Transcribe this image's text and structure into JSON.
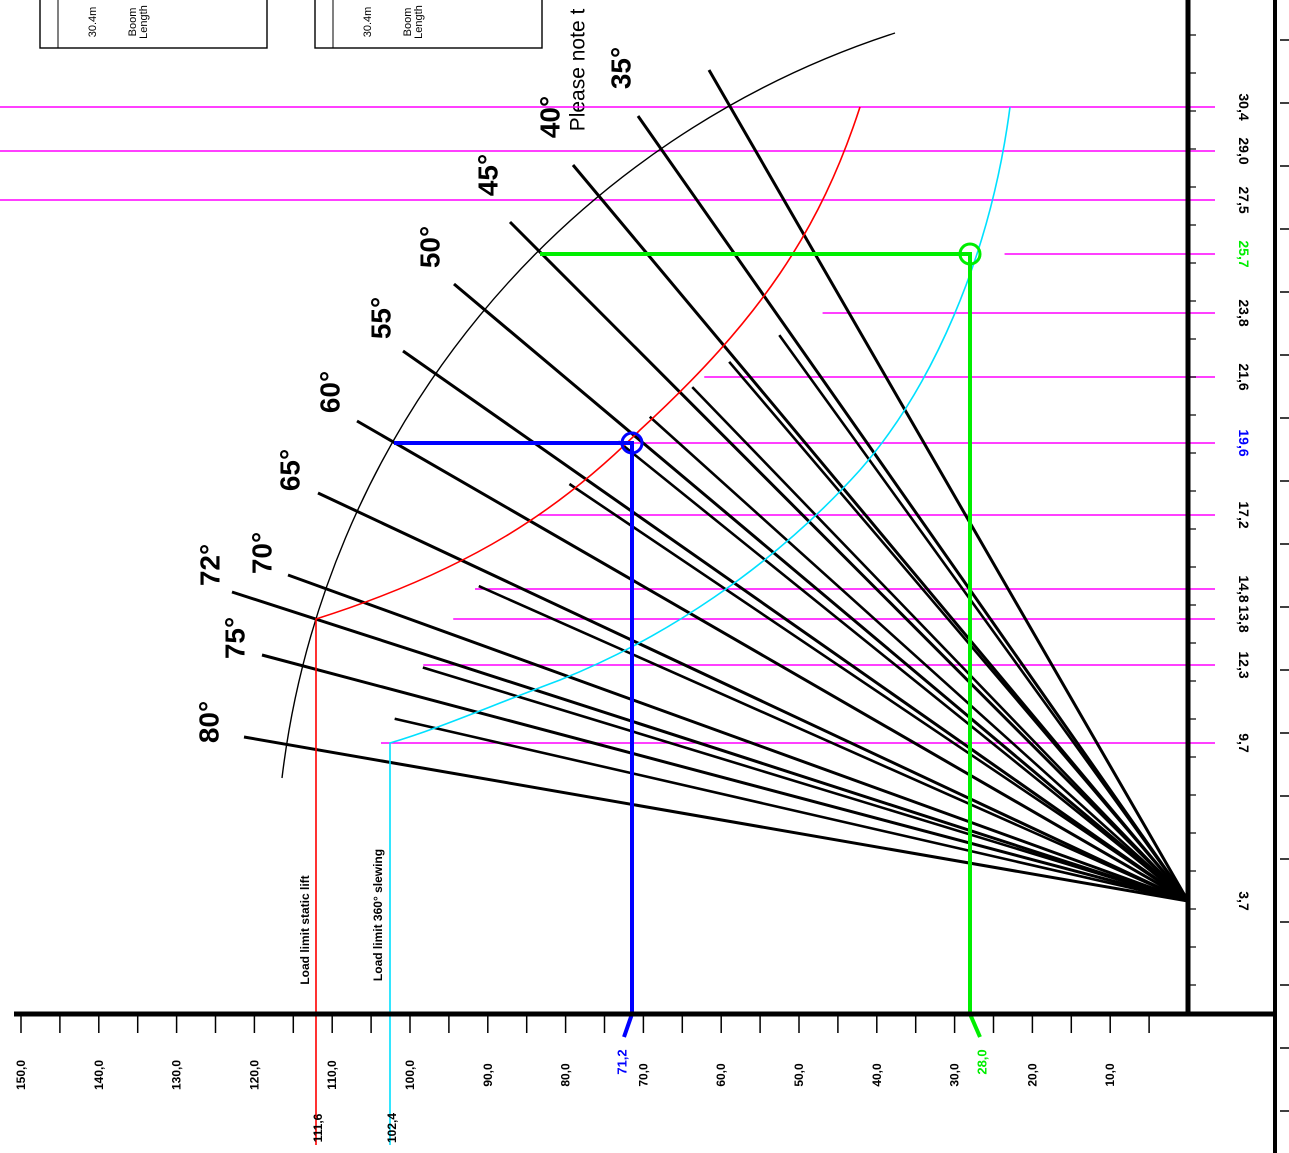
{
  "chart_data": {
    "type": "load_chart",
    "title": "",
    "horizontal_axis": {
      "ticks": [
        "10,0",
        "20,0",
        "30,0",
        "40,0",
        "50,0",
        "60,0",
        "70,0",
        "80,0",
        "90,0",
        "100,0",
        "110,0",
        "120,0",
        "130,0",
        "140,0",
        "150,0"
      ]
    },
    "vertical_axis": {
      "ticks": [
        "3,7",
        "9,7",
        "12,3",
        "13,8",
        "14,8",
        "17,2",
        "19,6",
        "21,6",
        "23,8",
        "25,7",
        "27,5",
        "29,0",
        "30,4"
      ]
    },
    "boom_angles": [
      "80°",
      "75°",
      "72°",
      "70°",
      "65°",
      "60°",
      "55°",
      "50°",
      "45°",
      "40°",
      "35°"
    ],
    "header_boxes": [
      {
        "length": "30.4m",
        "label_1": "Boom",
        "label_2": "Length"
      },
      {
        "length": "30.4m",
        "label_1": "Boom",
        "label_2": "Length"
      }
    ],
    "note_text": "Please note t",
    "load_limits": [
      {
        "name": "Load limit static lift",
        "end_value": "111,6",
        "color": "#ff0000"
      },
      {
        "name": "Load limit 360° slewing",
        "end_value": "102,4",
        "color": "#00e0ff"
      }
    ],
    "examples": [
      {
        "radius": "19,6",
        "load": "71,2",
        "color": "#0000ff"
      },
      {
        "radius": "25,7",
        "load": "28,0",
        "color": "#00ee00"
      }
    ],
    "guide_line_color": "#ff00ff",
    "grid": false
  }
}
